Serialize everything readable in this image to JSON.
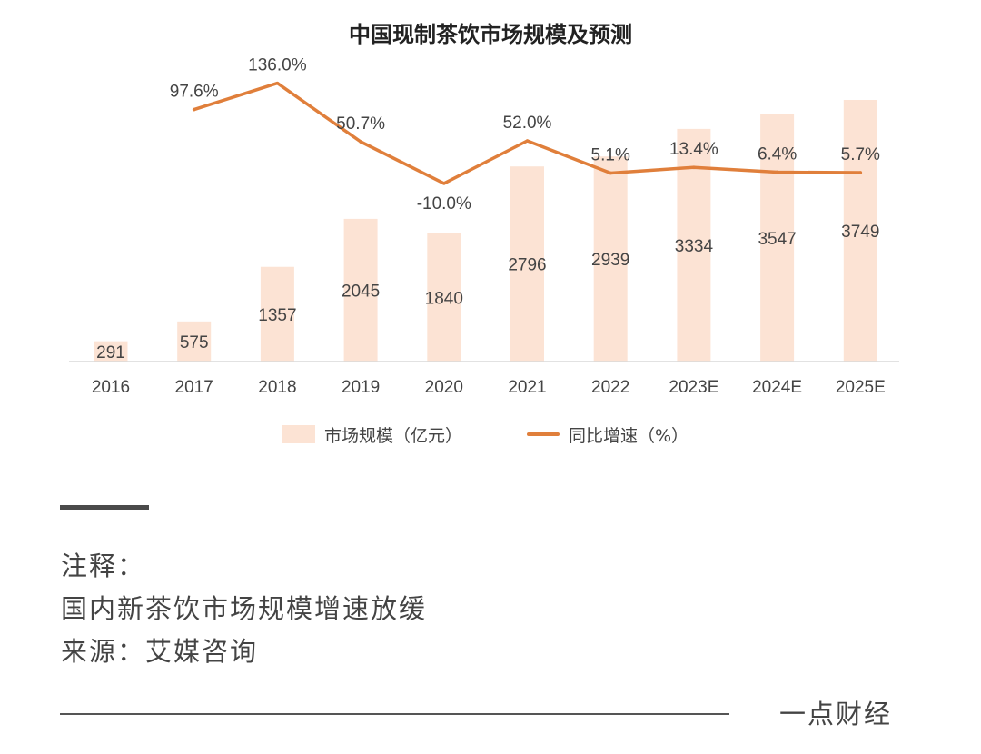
{
  "chart_data": {
    "type": "bar",
    "title": "中国现制茶饮市场规模及预测",
    "categories": [
      "2016",
      "2017",
      "2018",
      "2019",
      "2020",
      "2021",
      "2022",
      "2023E",
      "2024E",
      "2025E"
    ],
    "series": [
      {
        "name": "市场规模（亿元）",
        "type": "bar",
        "values": [
          291,
          575,
          1357,
          2045,
          1840,
          2796,
          2939,
          3334,
          3547,
          3749
        ],
        "labels": [
          "291",
          "575",
          "1357",
          "2045",
          "1840",
          "2796",
          "2939",
          "3334",
          "3547",
          "3749"
        ],
        "color": "#fce3d4"
      },
      {
        "name": "同比增速（%）",
        "type": "line",
        "values": [
          null,
          97.6,
          136.0,
          50.7,
          -10.0,
          52.0,
          5.1,
          13.4,
          6.4,
          5.7
        ],
        "labels": [
          "",
          "97.6%",
          "136.0%",
          "50.7%",
          "-10.0%",
          "52.0%",
          "5.1%",
          "13.4%",
          "6.4%",
          "5.7%"
        ],
        "color": "#e07f3b"
      }
    ],
    "xlabel": "",
    "ylabel": "",
    "grid": false,
    "legend": "bottom-center"
  },
  "legend": {
    "bar_label": "市场规模（亿元）",
    "line_label": "同比增速（%）"
  },
  "notes": {
    "heading": "注释：",
    "line1": "国内新茶饮市场规模增速放缓",
    "source": "来源：艾媒咨询"
  },
  "brand": "一点财经"
}
